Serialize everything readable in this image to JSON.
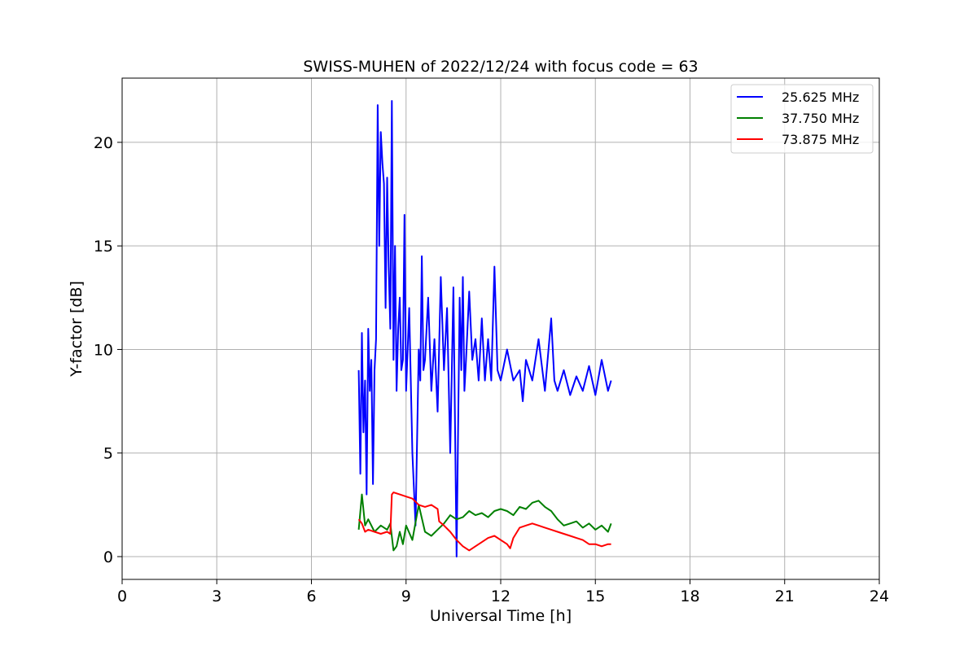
{
  "chart_data": {
    "type": "line",
    "title": "SWISS-MUHEN of 2022/12/24 with focus code = 63",
    "xlabel": "Universal Time [h]",
    "ylabel": "Y-factor [dB]",
    "xlim": [
      0,
      24
    ],
    "ylim": [
      -1.1,
      23.1
    ],
    "xticks": [
      0,
      3,
      6,
      9,
      12,
      15,
      18,
      21,
      24
    ],
    "yticks": [
      0,
      5,
      10,
      15,
      20
    ],
    "grid": true,
    "legend_position": "top-right",
    "series": [
      {
        "name": "25.625 MHz",
        "color": "#0000ff",
        "x": [
          7.5,
          7.55,
          7.6,
          7.65,
          7.7,
          7.75,
          7.8,
          7.85,
          7.9,
          7.95,
          8.0,
          8.05,
          8.1,
          8.15,
          8.2,
          8.25,
          8.3,
          8.35,
          8.4,
          8.45,
          8.5,
          8.55,
          8.6,
          8.65,
          8.7,
          8.75,
          8.8,
          8.85,
          8.9,
          8.95,
          9.0,
          9.1,
          9.2,
          9.3,
          9.4,
          9.45,
          9.5,
          9.55,
          9.6,
          9.7,
          9.8,
          9.9,
          10.0,
          10.1,
          10.2,
          10.3,
          10.4,
          10.5,
          10.6,
          10.7,
          10.75,
          10.8,
          10.85,
          10.9,
          11.0,
          11.1,
          11.2,
          11.3,
          11.4,
          11.5,
          11.6,
          11.7,
          11.8,
          11.9,
          12.0,
          12.2,
          12.4,
          12.6,
          12.7,
          12.8,
          13.0,
          13.2,
          13.4,
          13.6,
          13.7,
          13.8,
          14.0,
          14.2,
          14.4,
          14.6,
          14.8,
          15.0,
          15.2,
          15.4,
          15.5
        ],
        "y": [
          9.0,
          4.0,
          10.8,
          6.0,
          8.5,
          3.0,
          11.0,
          8.0,
          9.5,
          3.5,
          9.0,
          10.5,
          21.8,
          15.0,
          20.5,
          19.0,
          18.0,
          12.0,
          18.3,
          14.0,
          11.0,
          22.0,
          9.5,
          15.0,
          8.0,
          11.0,
          12.5,
          9.0,
          9.5,
          16.5,
          8.0,
          12.0,
          5.0,
          1.5,
          10.0,
          8.5,
          14.5,
          9.0,
          9.5,
          12.5,
          8.0,
          10.5,
          7.0,
          13.5,
          9.0,
          12.0,
          5.0,
          13.0,
          0.0,
          12.5,
          9.0,
          13.5,
          8.0,
          9.5,
          12.8,
          9.5,
          10.5,
          8.5,
          11.5,
          8.5,
          10.5,
          8.5,
          14.0,
          9.0,
          8.5,
          10.0,
          8.5,
          9.0,
          7.5,
          9.5,
          8.5,
          10.5,
          8.0,
          11.5,
          8.5,
          8.0,
          9.0,
          7.8,
          8.7,
          8.0,
          9.2,
          7.8,
          9.5,
          8.0,
          8.5
        ]
      },
      {
        "name": "37.750 MHz",
        "color": "#008000",
        "x": [
          7.5,
          7.6,
          7.7,
          7.8,
          8.0,
          8.2,
          8.4,
          8.5,
          8.6,
          8.7,
          8.8,
          8.9,
          9.0,
          9.2,
          9.4,
          9.6,
          9.8,
          10.0,
          10.2,
          10.4,
          10.6,
          10.8,
          11.0,
          11.2,
          11.4,
          11.6,
          11.8,
          12.0,
          12.2,
          12.4,
          12.6,
          12.8,
          13.0,
          13.2,
          13.4,
          13.6,
          13.8,
          14.0,
          14.2,
          14.4,
          14.6,
          14.8,
          15.0,
          15.2,
          15.4,
          15.5
        ],
        "y": [
          1.3,
          3.0,
          1.5,
          1.8,
          1.2,
          1.5,
          1.3,
          1.6,
          0.3,
          0.5,
          1.2,
          0.6,
          1.5,
          0.8,
          2.5,
          1.2,
          1.0,
          1.3,
          1.6,
          2.0,
          1.8,
          1.9,
          2.2,
          2.0,
          2.1,
          1.9,
          2.2,
          2.3,
          2.2,
          2.0,
          2.4,
          2.3,
          2.6,
          2.7,
          2.4,
          2.2,
          1.8,
          1.5,
          1.6,
          1.7,
          1.4,
          1.6,
          1.3,
          1.5,
          1.2,
          1.6
        ]
      },
      {
        "name": "73.875 MHz",
        "color": "#ff0000",
        "x": [
          7.5,
          7.6,
          7.7,
          7.8,
          8.0,
          8.2,
          8.4,
          8.5,
          8.55,
          8.6,
          8.8,
          9.0,
          9.2,
          9.4,
          9.6,
          9.8,
          10.0,
          10.05,
          10.2,
          10.4,
          10.6,
          10.8,
          11.0,
          11.2,
          11.4,
          11.6,
          11.8,
          12.0,
          12.2,
          12.3,
          12.4,
          12.6,
          12.8,
          13.0,
          13.2,
          13.4,
          13.6,
          13.8,
          14.0,
          14.2,
          14.4,
          14.6,
          14.8,
          15.0,
          15.2,
          15.4,
          15.5
        ],
        "y": [
          1.8,
          1.6,
          1.2,
          1.3,
          1.2,
          1.1,
          1.2,
          1.1,
          3.0,
          3.1,
          3.0,
          2.9,
          2.8,
          2.5,
          2.4,
          2.5,
          2.3,
          1.7,
          1.5,
          1.2,
          0.8,
          0.5,
          0.3,
          0.5,
          0.7,
          0.9,
          1.0,
          0.8,
          0.6,
          0.4,
          0.9,
          1.4,
          1.5,
          1.6,
          1.5,
          1.4,
          1.3,
          1.2,
          1.1,
          1.0,
          0.9,
          0.8,
          0.6,
          0.6,
          0.5,
          0.6,
          0.6
        ]
      }
    ]
  }
}
